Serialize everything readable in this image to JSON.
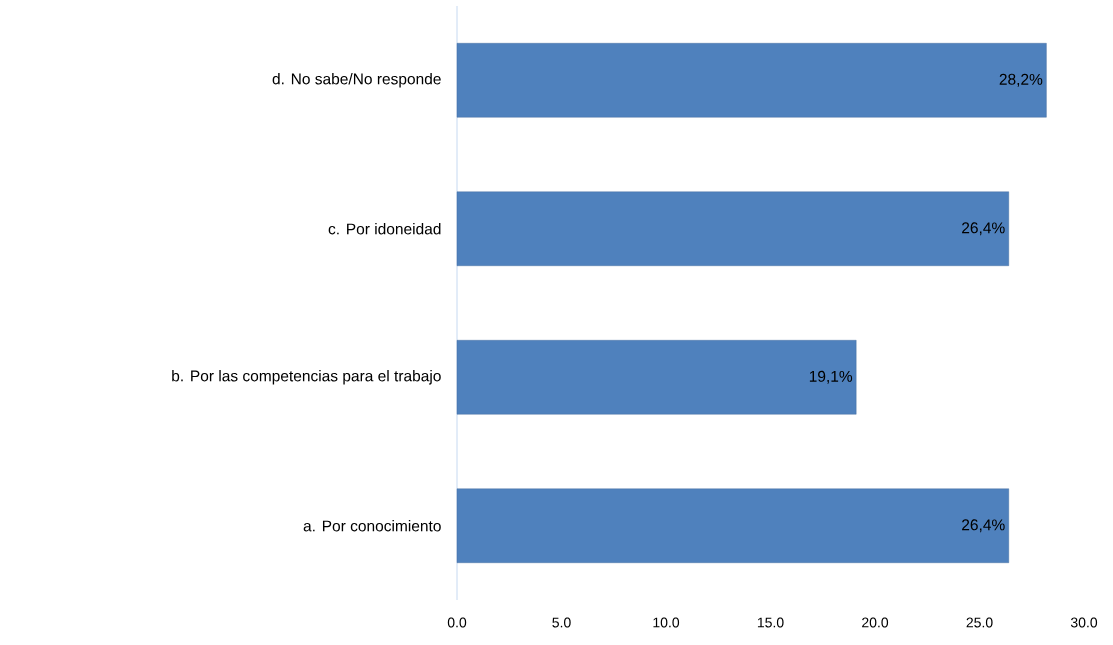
{
  "chart_data": {
    "type": "bar",
    "orientation": "horizontal",
    "categories": [
      "d. No sabe/No responde",
      "c. Por idoneidad",
      "b. Por las competencias  para el trabajo",
      "a. Por conocimiento"
    ],
    "values": [
      28.2,
      26.4,
      19.1,
      26.4
    ],
    "value_labels": [
      "28,2%",
      "26,4%",
      "19,1%",
      "26,4%"
    ],
    "color": "#4f81bd",
    "xlim": [
      0,
      30
    ],
    "xticks": [
      {
        "value": 0,
        "label": "0.0"
      },
      {
        "value": 5,
        "label": "5.0"
      },
      {
        "value": 10,
        "label": "10.0"
      },
      {
        "value": 15,
        "label": "15.0"
      },
      {
        "value": 20,
        "label": "20.0"
      },
      {
        "value": 25,
        "label": "25.0"
      },
      {
        "value": 30,
        "label": "30.0"
      }
    ]
  }
}
